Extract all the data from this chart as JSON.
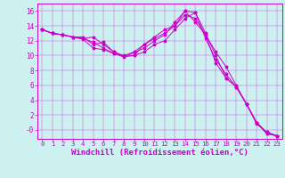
{
  "background_color": "#cdf0f0",
  "plot_background": "#cdf0f0",
  "line_color": "#cc00cc",
  "marker": "*",
  "xlabel": "Windchill (Refroidissement éolien,°C)",
  "xlabel_fontsize": 6.5,
  "xtick_fontsize": 5.2,
  "ytick_fontsize": 5.5,
  "xlim": [
    -0.5,
    23.5
  ],
  "ylim": [
    -1.2,
    17
  ],
  "xticks": [
    0,
    1,
    2,
    3,
    4,
    5,
    6,
    7,
    8,
    9,
    10,
    11,
    12,
    13,
    14,
    15,
    16,
    17,
    18,
    19,
    20,
    21,
    22,
    23
  ],
  "yticks": [
    0,
    2,
    4,
    6,
    8,
    10,
    12,
    14,
    16
  ],
  "ytick_labels": [
    "-0",
    "2",
    "4",
    "6",
    "8",
    "10",
    "12",
    "14",
    "16"
  ],
  "series": [
    {
      "x": [
        0,
        1,
        2,
        3,
        4,
        5,
        6,
        7,
        8,
        9,
        10,
        11,
        12,
        13,
        14,
        15,
        16,
        17,
        18,
        19,
        20,
        21,
        22,
        23
      ],
      "y": [
        13.5,
        13.0,
        12.8,
        12.5,
        12.3,
        12.5,
        11.5,
        10.5,
        9.9,
        10.0,
        11.5,
        12.5,
        13.5,
        14.0,
        16.0,
        15.8,
        13.0,
        10.0,
        7.0,
        5.8,
        3.5,
        1.0,
        -0.5,
        -0.8
      ]
    },
    {
      "x": [
        0,
        1,
        2,
        3,
        4,
        5,
        6,
        7,
        8,
        9,
        10,
        11,
        12,
        13,
        14,
        15,
        16,
        17,
        18,
        19,
        20,
        21,
        22,
        23
      ],
      "y": [
        13.5,
        13.0,
        12.8,
        12.5,
        12.3,
        11.8,
        11.0,
        10.3,
        9.8,
        10.4,
        11.0,
        12.0,
        12.8,
        14.5,
        16.0,
        14.5,
        12.8,
        10.5,
        8.5,
        6.0,
        3.5,
        1.0,
        -0.3,
        -0.8
      ]
    },
    {
      "x": [
        0,
        1,
        2,
        3,
        4,
        5,
        6,
        7,
        8,
        9,
        10,
        11,
        12,
        13,
        14,
        15,
        16,
        17,
        18,
        19,
        20,
        21,
        22,
        23
      ],
      "y": [
        13.5,
        13.0,
        12.8,
        12.5,
        12.2,
        11.0,
        10.8,
        10.3,
        9.9,
        10.0,
        10.5,
        11.5,
        12.0,
        13.5,
        15.0,
        15.8,
        12.3,
        9.5,
        7.5,
        5.8,
        3.5,
        1.0,
        -0.5,
        -0.8
      ]
    },
    {
      "x": [
        0,
        1,
        2,
        3,
        4,
        5,
        6,
        7,
        8,
        9,
        10,
        11,
        12,
        13,
        14,
        15,
        16,
        17,
        18,
        19,
        20,
        21,
        22,
        23
      ],
      "y": [
        13.5,
        13.0,
        12.8,
        12.5,
        12.5,
        11.5,
        11.8,
        10.5,
        10.0,
        10.5,
        11.5,
        12.3,
        13.0,
        14.0,
        15.5,
        15.0,
        12.8,
        9.0,
        7.0,
        5.8,
        3.5,
        0.8,
        -0.3,
        -0.8
      ]
    }
  ]
}
